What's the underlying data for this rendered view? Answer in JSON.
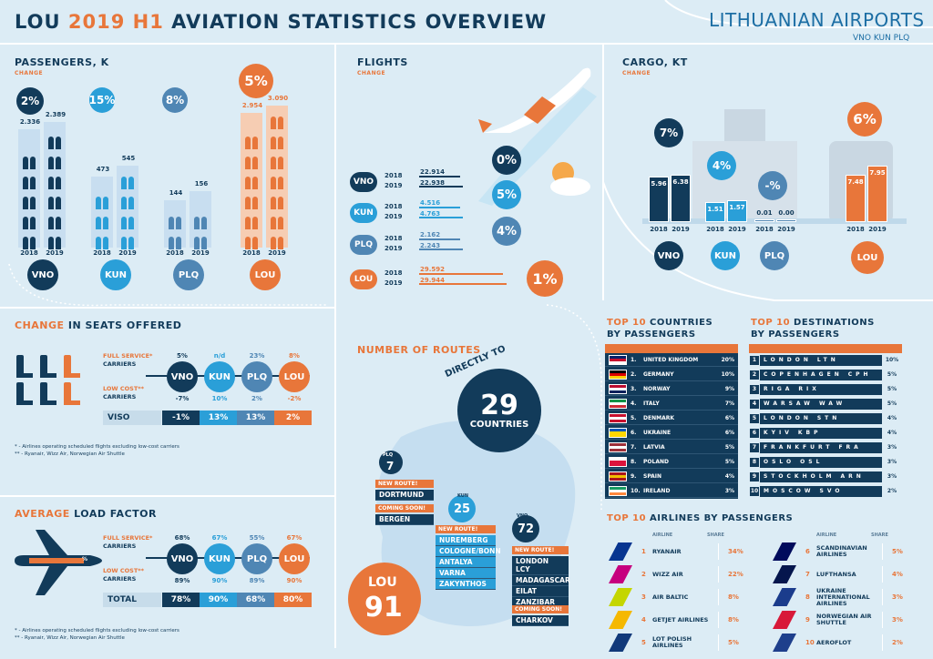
{
  "header": {
    "title_a": "LOU ",
    "title_b": "2019 H1",
    "title_c": " AVIATION STATISTICS OVERVIEW",
    "brand": "LITHUANIAN AIRPORTS",
    "brand_sub": "VNO KUN PLQ"
  },
  "passengers": {
    "title": "PASSENGERS, K",
    "sub": "CHANGE",
    "airports": [
      {
        "code": "VNO",
        "change": "2%",
        "v2018": "2.336",
        "v2019": "2.389"
      },
      {
        "code": "KUN",
        "change": "15%",
        "v2018": "473",
        "v2019": "545"
      },
      {
        "code": "PLQ",
        "change": "8%",
        "v2018": "144",
        "v2019": "156"
      },
      {
        "code": "LOU",
        "change": "5%",
        "v2018": "2.954",
        "v2019": "3.090"
      }
    ],
    "y2018": "2018",
    "y2019": "2019"
  },
  "flights": {
    "title": "FLIGHTS",
    "sub": "CHANGE",
    "rows": [
      {
        "code": "VNO",
        "v2018": "22.914",
        "v2019": "22.938",
        "change": "0%"
      },
      {
        "code": "KUN",
        "v2018": "4.516",
        "v2019": "4.763",
        "change": "5%"
      },
      {
        "code": "PLQ",
        "v2018": "2.162",
        "v2019": "2.243",
        "change": "4%"
      },
      {
        "code": "LOU",
        "v2018": "29.592",
        "v2019": "29.944",
        "change": "1%"
      }
    ],
    "y2018": "2018",
    "y2019": "2019"
  },
  "cargo": {
    "title": "CARGO, KT",
    "sub": "CHANGE",
    "airports": [
      {
        "code": "VNO",
        "change": "7%",
        "v2018": "5.96",
        "v2019": "6.38"
      },
      {
        "code": "KUN",
        "change": "4%",
        "v2018": "1.51",
        "v2019": "1.57"
      },
      {
        "code": "PLQ",
        "change": "-%",
        "v2018": "0.01",
        "v2019": "0.00"
      },
      {
        "code": "LOU",
        "change": "6%",
        "v2018": "7.48",
        "v2019": "7.95"
      }
    ],
    "y2018": "2018",
    "y2019": "2019"
  },
  "seats": {
    "title_a": "CHANGE",
    "title_b": " IN SEATS OFFERED",
    "full_service": "FULL SERVICE*",
    "carriers": "CARRIERS",
    "low_cost": "LOW COST**",
    "full": [
      "5%",
      "n/d",
      "23%",
      "8%"
    ],
    "low": [
      "-7%",
      "10%",
      "2%",
      "-2%"
    ],
    "codes": [
      "VNO",
      "KUN",
      "PLQ",
      "LOU"
    ],
    "total_label": "VISO",
    "total": [
      "-1%",
      "13%",
      "13%",
      "2%"
    ],
    "foot1": "* - Airlines operating scheduled flights excluding low-cost carriers",
    "foot2": "** - Ryanair, Wizz Air, Norwegian Air Shuttle"
  },
  "load": {
    "title_a": "AVERAGE",
    "title_b": " LOAD FACTOR",
    "full": [
      "68%",
      "67%",
      "55%",
      "67%"
    ],
    "low": [
      "89%",
      "90%",
      "89%",
      "90%"
    ],
    "total_label": "TOTAL",
    "total": [
      "78%",
      "90%",
      "68%",
      "80%"
    ],
    "pct_glyph": "%"
  },
  "routes": {
    "title": "NUMBER OF ROUTES",
    "directly": "DIRECTLY TO",
    "countries_n": "29",
    "countries": "COUNTRIES",
    "plq_label": "PLQ",
    "plq_n": "7",
    "kun_label": "KUN",
    "kun_n": "25",
    "vno_label": "VNO",
    "vno_n": "72",
    "lou_label": "LOU",
    "lou_n": "91",
    "new_route": "NEW ROUTE!",
    "coming_soon": "COMING SOON!",
    "plq_new": [
      "DORTMUND"
    ],
    "plq_soon": [
      "BERGEN"
    ],
    "kun_new": [
      "NUREMBERG",
      "COLOGNE/BONN",
      "ANTALYA",
      "VARNA",
      "ZAKYNTHOS"
    ],
    "vno_new": [
      "LONDON LCY",
      "MADAGASCAR",
      "EILAT",
      "ZANZIBAR"
    ],
    "vno_soon": [
      "CHARKOV"
    ]
  },
  "countries": {
    "title_a": "TOP 10",
    "title_b": " COUNTRIES",
    "title_c": "BY PASSENGERS",
    "rows": [
      {
        "n": "1.",
        "name": "UNITED KINGDOM",
        "share": "20%",
        "flag": [
          "#012169",
          "#c8102e",
          "#ffffff"
        ]
      },
      {
        "n": "2.",
        "name": "GERMANY",
        "share": "10%",
        "flag": [
          "#000000",
          "#dd0000",
          "#ffce00"
        ]
      },
      {
        "n": "3.",
        "name": "NORWAY",
        "share": "9%",
        "flag": [
          "#ba0c2f",
          "#ffffff",
          "#00205b"
        ]
      },
      {
        "n": "4.",
        "name": "ITALY",
        "share": "7%",
        "flag": [
          "#009246",
          "#ffffff",
          "#ce2b37"
        ]
      },
      {
        "n": "5.",
        "name": "DENMARK",
        "share": "6%",
        "flag": [
          "#c8102e",
          "#ffffff",
          "#c8102e"
        ]
      },
      {
        "n": "6.",
        "name": "UKRAINE",
        "share": "6%",
        "flag": [
          "#0057b7",
          "#ffd700",
          "#ffd700"
        ]
      },
      {
        "n": "7.",
        "name": "LATVIA",
        "share": "5%",
        "flag": [
          "#9e3039",
          "#ffffff",
          "#9e3039"
        ]
      },
      {
        "n": "8.",
        "name": "POLAND",
        "share": "5%",
        "flag": [
          "#ffffff",
          "#dc143c",
          "#dc143c"
        ]
      },
      {
        "n": "9.",
        "name": "SPAIN",
        "share": "4%",
        "flag": [
          "#aa151b",
          "#f1bf00",
          "#aa151b"
        ]
      },
      {
        "n": "10.",
        "name": "IRELAND",
        "share": "3%",
        "flag": [
          "#169b62",
          "#ffffff",
          "#ff883e"
        ]
      }
    ]
  },
  "destinations": {
    "title_a": "TOP 10",
    "title_b": " DESTINATIONS",
    "title_c": "BY PASSENGERS",
    "rows": [
      {
        "n": "1",
        "city": "LONDON",
        "code": "LTN",
        "share": "10%"
      },
      {
        "n": "2",
        "city": "COPENHAGEN",
        "code": "CPH",
        "share": "5%"
      },
      {
        "n": "3",
        "city": "RIGA",
        "code": "RIX",
        "share": "5%"
      },
      {
        "n": "4",
        "city": "WARSAW",
        "code": "WAW",
        "share": "5%"
      },
      {
        "n": "5",
        "city": "LONDON",
        "code": "STN",
        "share": "4%"
      },
      {
        "n": "6",
        "city": "KYIV",
        "code": "KBP",
        "share": "4%"
      },
      {
        "n": "7",
        "city": "FRANKFURT",
        "code": "FRA",
        "share": "3%"
      },
      {
        "n": "8",
        "city": "OSLO",
        "code": "OSL",
        "share": "3%"
      },
      {
        "n": "9",
        "city": "STOCKHOLM",
        "code": "ARN",
        "share": "3%"
      },
      {
        "n": "10",
        "city": "MOSCOW",
        "code": "SVO",
        "share": "2%"
      }
    ]
  },
  "airlines": {
    "title_a": "TOP 10",
    "title_b": " AIRLINES BY PASSENGERS",
    "col_airline": "AIRLINE",
    "col_share": "SHARE",
    "left": [
      {
        "n": "1",
        "name": "RYANAIR",
        "share": "34%",
        "color": "#073590"
      },
      {
        "n": "2",
        "name": "WIZZ AIR",
        "share": "22%",
        "color": "#c6007e"
      },
      {
        "n": "3",
        "name": "AIR BALTIC",
        "share": "8%",
        "color": "#c4d600"
      },
      {
        "n": "4",
        "name": "GETJET AIRLINES",
        "share": "8%",
        "color": "#f5b800"
      },
      {
        "n": "5",
        "name": "LOT POLISH AIRLINES",
        "share": "5%",
        "color": "#11397a"
      }
    ],
    "right": [
      {
        "n": "6",
        "name": "SCANDINAVIAN AIRLINES",
        "share": "5%",
        "color": "#000b5c"
      },
      {
        "n": "7",
        "name": "LUFTHANSA",
        "share": "4%",
        "color": "#05164d"
      },
      {
        "n": "8",
        "name": "UKRAINE INTERNATIONAL AIRLINES",
        "share": "3%",
        "color": "#1b3c8c"
      },
      {
        "n": "9",
        "name": "NORWEGIAN AIR SHUTTLE",
        "share": "3%",
        "color": "#d81939"
      },
      {
        "n": "10",
        "name": "AEROFLOT",
        "share": "2%",
        "color": "#1e3f8c"
      }
    ]
  },
  "colors": {
    "navy": "#123b5a",
    "orange": "#e8763a",
    "light_blue": "#2a9fd8",
    "mid_blue": "#4f86b4",
    "bg": "#dcecf5"
  }
}
